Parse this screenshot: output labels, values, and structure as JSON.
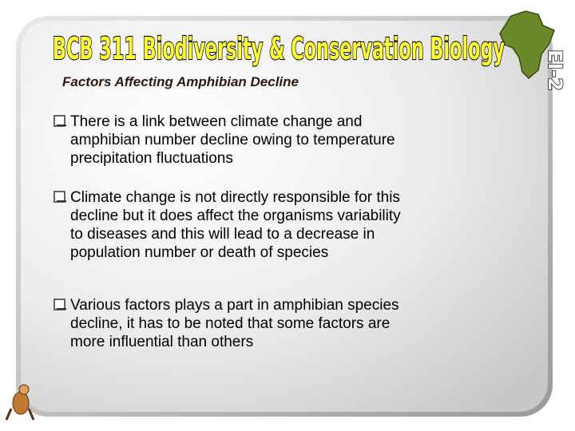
{
  "header": {
    "title": "BCB 311 Biodiversity & Conservation Biology",
    "code": "EI-2"
  },
  "slide": {
    "heading": "Factors Affecting Amphibian Decline",
    "bullets": [
      [
        "There is a link between climate change and",
        "amphibian number decline owing to temperature",
        "precipitation fluctuations"
      ],
      [
        "Climate change is not directly responsible for this",
        "decline but it does affect the organisms variability",
        "to diseases and this will lead to a decrease in",
        "population number or death of species"
      ],
      [
        "Various factors plays a part in amphibian species",
        "decline, it has to be noted that some factors are",
        "more influential than others"
      ]
    ]
  }
}
